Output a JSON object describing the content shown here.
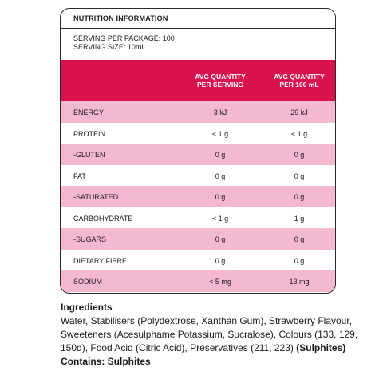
{
  "panel": {
    "title": "NUTRITION INFORMATION",
    "serving_per_package": "SERVING PER PACKAGE: 100",
    "serving_size": "SERVING SIZE: 10mL",
    "col1_line1": "AVG QUANTITY",
    "col1_line2": "PER SERVING",
    "col2_line1": "AVG QUANTITY",
    "col2_line2": "PER 100 mL"
  },
  "rows": [
    {
      "name": "ENERGY",
      "per_serving": "3 kJ",
      "per_100ml": "29 kJ"
    },
    {
      "name": "PROTEIN",
      "per_serving": "< 1 g",
      "per_100ml": "< 1 g"
    },
    {
      "name": "-GLUTEN",
      "per_serving": "0 g",
      "per_100ml": "0 g"
    },
    {
      "name": "FAT",
      "per_serving": "0 g",
      "per_100ml": "0 g"
    },
    {
      "name": "-SATURATED",
      "per_serving": "0 g",
      "per_100ml": "0 g"
    },
    {
      "name": "CARBOHYDRATE",
      "per_serving": "< 1 g",
      "per_100ml": "1 g"
    },
    {
      "name": "-SUGARS",
      "per_serving": "0 g",
      "per_100ml": "0 g"
    },
    {
      "name": "DIETARY FIBRE",
      "per_serving": "0 g",
      "per_100ml": "0 g"
    },
    {
      "name": "SODIUM",
      "per_serving": "< 5 mg",
      "per_100ml": "13 mg"
    }
  ],
  "ingredients": {
    "title": "Ingredients",
    "text": "Water, Stabilisers (Polydextrose, Xanthan Gum), Strawberry Flavour, Sweeteners (Acesulphame Potassium, Sucralose), Colours (133, 129, 150d), Food Acid (Citric Acid), Preservatives (211, 223)",
    "sulphites": "(Sulphites)",
    "contains": "Contains: Sulphites"
  },
  "colors": {
    "header_red": "#d9114d",
    "row_pink": "#f4b9d1"
  }
}
